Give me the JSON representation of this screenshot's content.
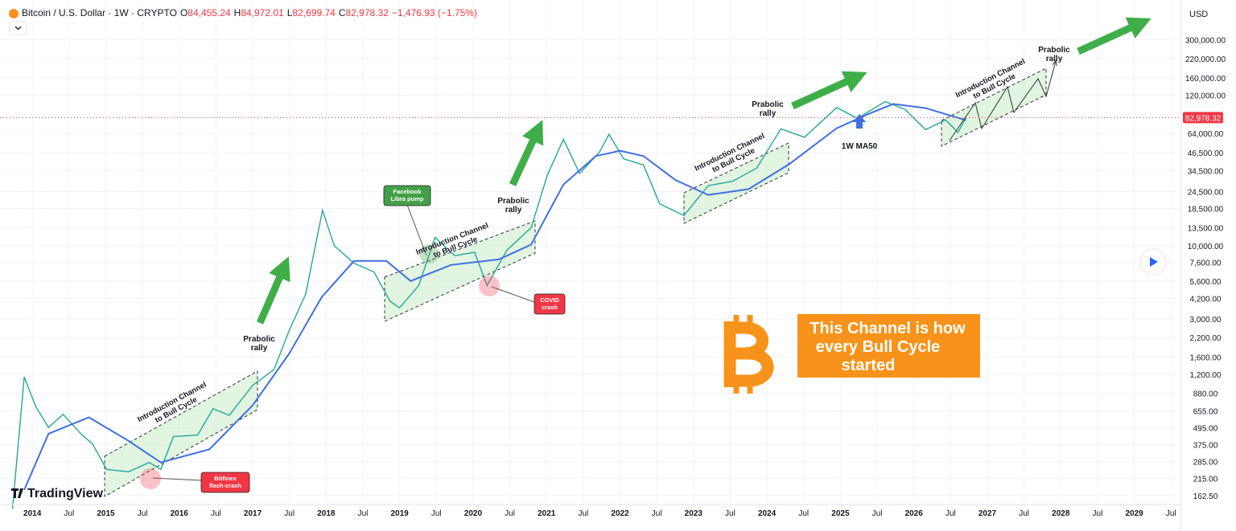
{
  "chart_data": {
    "type": "line",
    "log_scale": true,
    "grid": true,
    "header": {
      "title": "Bitcoin / U.S. Dollar · 1W · CRYPTO",
      "ohlc": [
        {
          "label": "O",
          "value": "84,455.24"
        },
        {
          "label": "H",
          "value": "84,972.01"
        },
        {
          "label": "L",
          "value": "82,699.74"
        },
        {
          "label": "C",
          "value": "82,978.32"
        }
      ],
      "change": "−1,476.93 (−1.75%)"
    },
    "currency": "USD",
    "watermark": "TradingView",
    "xlim": [
      2013.56,
      2029.64
    ],
    "xticks": [
      {
        "value": 2014,
        "label": "2014"
      },
      {
        "value": 2014.5,
        "label": "Jul"
      },
      {
        "value": 2015,
        "label": "2015"
      },
      {
        "value": 2015.5,
        "label": "Jul"
      },
      {
        "value": 2016,
        "label": "2016"
      },
      {
        "value": 2016.5,
        "label": "Jul"
      },
      {
        "value": 2017,
        "label": "2017"
      },
      {
        "value": 2017.5,
        "label": "Jul"
      },
      {
        "value": 2018,
        "label": "2018"
      },
      {
        "value": 2018.5,
        "label": "Jul"
      },
      {
        "value": 2019,
        "label": "2019"
      },
      {
        "value": 2019.5,
        "label": "Jul"
      },
      {
        "value": 2020,
        "label": "2020"
      },
      {
        "value": 2020.5,
        "label": "Jul"
      },
      {
        "value": 2021,
        "label": "2021"
      },
      {
        "value": 2021.5,
        "label": "Jul"
      },
      {
        "value": 2022,
        "label": "2022"
      },
      {
        "value": 2022.5,
        "label": "Jul"
      },
      {
        "value": 2023,
        "label": "2023"
      },
      {
        "value": 2023.5,
        "label": "Jul"
      },
      {
        "value": 2024,
        "label": "2024"
      },
      {
        "value": 2024.5,
        "label": "Jul"
      },
      {
        "value": 2025,
        "label": "2025"
      },
      {
        "value": 2025.5,
        "label": "Jul"
      },
      {
        "value": 2026,
        "label": "2026"
      },
      {
        "value": 2026.5,
        "label": "Jul"
      },
      {
        "value": 2027,
        "label": "2027"
      },
      {
        "value": 2027.5,
        "label": "Jul"
      },
      {
        "value": 2028,
        "label": "2028"
      },
      {
        "value": 2028.5,
        "label": "Jul"
      },
      {
        "value": 2029,
        "label": "2029"
      },
      {
        "value": 2029.5,
        "label": "Jul"
      }
    ],
    "ylim": [
      140,
      520000
    ],
    "yticks": [
      {
        "value": 300000,
        "label": "300,000.00"
      },
      {
        "value": 220000,
        "label": "220,000.00"
      },
      {
        "value": 160000,
        "label": "160,000.00"
      },
      {
        "value": 120000,
        "label": "120,000.00"
      },
      {
        "value": 64000,
        "label": "64,000.00"
      },
      {
        "value": 46500,
        "label": "46,500.00"
      },
      {
        "value": 34500,
        "label": "34,500.00"
      },
      {
        "value": 24500,
        "label": "24,500.00"
      },
      {
        "value": 18500,
        "label": "18,500.00"
      },
      {
        "value": 13500,
        "label": "13,500.00"
      },
      {
        "value": 10000,
        "label": "10,000.00"
      },
      {
        "value": 7600,
        "label": "7,600.00"
      },
      {
        "value": 5600,
        "label": "5,600.00"
      },
      {
        "value": 4200,
        "label": "4,200.00"
      },
      {
        "value": 3000,
        "label": "3,000.00"
      },
      {
        "value": 2200,
        "label": "2,200.00"
      },
      {
        "value": 1600,
        "label": "1,600.00"
      },
      {
        "value": 1200,
        "label": "1,200.00"
      },
      {
        "value": 880,
        "label": "880.00"
      },
      {
        "value": 655,
        "label": "655.00"
      },
      {
        "value": 495,
        "label": "495.00"
      },
      {
        "value": 375,
        "label": "375.00"
      },
      {
        "value": 285,
        "label": "285.00"
      },
      {
        "value": 215,
        "label": "215.00"
      },
      {
        "value": 162.5,
        "label": "162.50"
      }
    ],
    "last_price": {
      "value": 82978.32,
      "label": "82,978.32"
    },
    "series": [
      {
        "color": "#26a69a",
        "x": [
          2013.73,
          2013.89,
          2014.05,
          2014.22,
          2014.42,
          2014.66,
          2014.82,
          2015.01,
          2015.31,
          2015.59,
          2015.75,
          2015.92,
          2016.25,
          2016.46,
          2016.68,
          2017.0,
          2017.29,
          2017.5,
          2017.72,
          2017.95,
          2018.11,
          2018.38,
          2018.65,
          2018.87,
          2019.0,
          2019.26,
          2019.48,
          2019.75,
          2020.02,
          2020.19,
          2020.46,
          2020.79,
          2021.01,
          2021.23,
          2021.45,
          2021.72,
          2021.85,
          2022.05,
          2022.32,
          2022.54,
          2022.87,
          2023.2,
          2023.53,
          2023.86,
          2024.19,
          2024.51,
          2024.95,
          2025.23,
          2025.61,
          2025.88,
          2026.16,
          2026.43,
          2026.6,
          2026.71
        ],
        "values": [
          130,
          1150,
          700,
          500,
          620,
          450,
          380,
          250,
          240,
          280,
          250,
          430,
          440,
          680,
          610,
          1000,
          1300,
          2500,
          4500,
          18000,
          10000,
          7500,
          6500,
          4000,
          3600,
          5200,
          11500,
          8500,
          9000,
          5200,
          9300,
          13500,
          32000,
          58000,
          33000,
          47000,
          63000,
          42000,
          38000,
          20000,
          16500,
          27000,
          29000,
          36000,
          69000,
          60000,
          98000,
          82000,
          108000,
          95000,
          68000,
          80000,
          65000,
          82978.32
        ]
      },
      {
        "name": "1W MA50",
        "color": "#3f6fe0",
        "x": [
          2013.89,
          2014.22,
          2014.77,
          2015.31,
          2015.75,
          2016.41,
          2017.0,
          2017.5,
          2017.94,
          2018.38,
          2018.82,
          2019.15,
          2019.7,
          2020.35,
          2020.79,
          2021.23,
          2021.67,
          2022.0,
          2022.32,
          2022.76,
          2023.2,
          2023.75,
          2024.3,
          2024.95,
          2025.39,
          2025.72,
          2026.16,
          2026.71
        ],
        "values": [
          178,
          450,
          590,
          400,
          280,
          348,
          720,
          1700,
          4300,
          7800,
          7800,
          5600,
          7300,
          8000,
          10200,
          27500,
          44000,
          48000,
          44000,
          29500,
          23200,
          25500,
          38400,
          69700,
          88500,
          104000,
          97000,
          79500
        ]
      }
    ],
    "annotations": {
      "rally_labels": [
        [
          "Prabolic",
          "rally"
        ],
        [
          "Prabolic",
          "rally"
        ],
        [
          "Prabolic",
          "rally"
        ],
        [
          "Prabolic",
          "rally"
        ]
      ],
      "channel_labels": [
        [
          "Introduction Channel",
          "to Bull Cycle"
        ],
        [
          "Introduction Channel",
          "to Bull Cycle"
        ],
        [
          "Introduction Channel",
          "to Bull Cycle"
        ],
        [
          "Introduction Channel",
          "to Bull Cycle"
        ]
      ],
      "callouts": [
        [
          "Facebook",
          "Libra pump"
        ],
        [
          "COVID",
          "crash"
        ],
        [
          "Bitfinex",
          "flash-crash"
        ]
      ],
      "banner": [
        "This Channel is how",
        "every Bull Cycle",
        "started"
      ]
    }
  }
}
